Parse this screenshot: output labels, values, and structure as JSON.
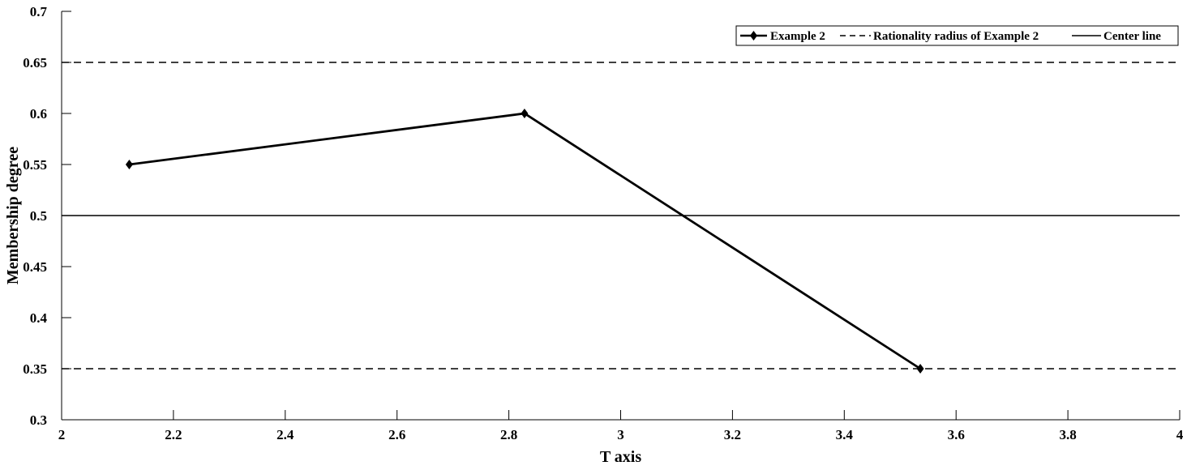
{
  "chart_data": {
    "type": "line",
    "title": "",
    "xlabel": "T axis",
    "ylabel": "Membership degree",
    "xlim": [
      2,
      4
    ],
    "ylim": [
      0.3,
      0.7
    ],
    "xticks": [
      2,
      2.2,
      2.4,
      2.6,
      2.8,
      3,
      3.2,
      3.4,
      3.6,
      3.8,
      4
    ],
    "xtick_labels": [
      "2",
      "2.2",
      "2.4",
      "2.6",
      "2.8",
      "3",
      "3.2",
      "3.4",
      "3.6",
      "3.8",
      "4"
    ],
    "yticks": [
      0.3,
      0.35,
      0.4,
      0.45,
      0.5,
      0.55,
      0.6,
      0.65,
      0.7
    ],
    "ytick_labels": [
      "0.3",
      "0.35",
      "0.4",
      "0.45",
      "0.5",
      "0.55",
      "0.6",
      "0.65",
      "0.7"
    ],
    "grid": false,
    "legend_position": "top-right",
    "series": [
      {
        "name": "Example 2",
        "style": "solid-diamond",
        "color": "#000000",
        "x": [
          2.121,
          2.828,
          3.536
        ],
        "y": [
          0.55,
          0.6,
          0.35
        ]
      }
    ],
    "reference_lines": [
      {
        "name": "Rationality radius of Example 2",
        "style": "dashed",
        "color": "#000000",
        "y": [
          0.65,
          0.35
        ]
      },
      {
        "name": "Center line",
        "style": "solid",
        "color": "#000000",
        "y": [
          0.5
        ]
      }
    ]
  }
}
